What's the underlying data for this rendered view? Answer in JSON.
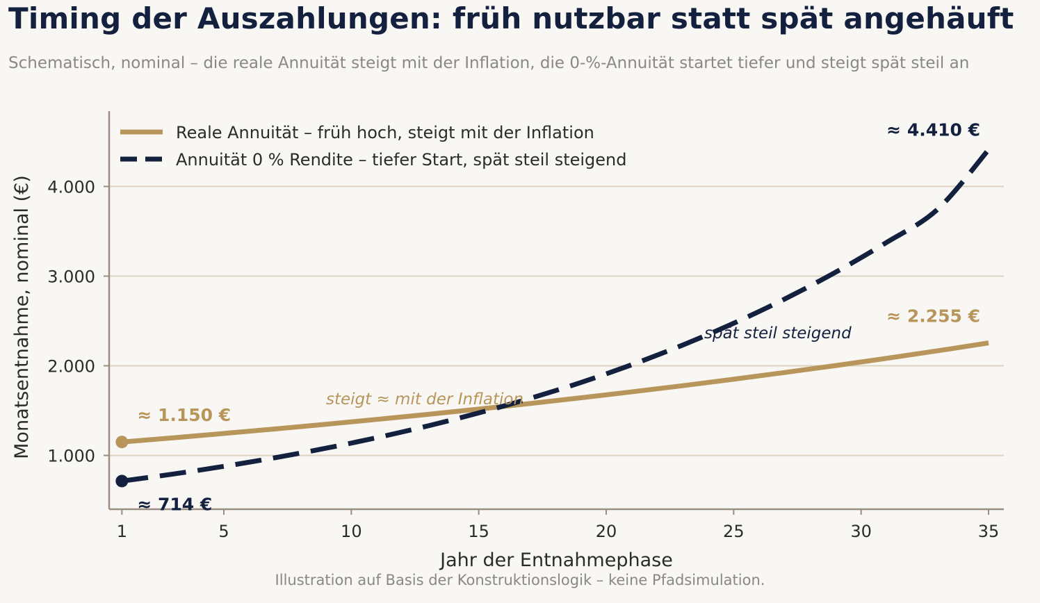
{
  "title": "Timing der Auszahlungen: früh nutzbar statt spät angehäuft",
  "subtitle": "Schematisch, nominal – die reale Annuität steigt mit der Inflation, die 0-%-Annuität startet tiefer und steigt spät steil an",
  "footnote": "Illustration auf Basis der Konstruktionslogik – keine Pfadsimulation.",
  "colors": {
    "real": "#b8955a",
    "zero": "#13213f",
    "grid": "#ddd3bf",
    "axis": "#9a8e80",
    "background": "#f8f7f4"
  },
  "chart_data": {
    "type": "line",
    "xlabel": "Jahr der Entnahmephase",
    "ylabel": "Monatsentnahme, nominal (€)",
    "xlim": [
      0.5,
      35.6
    ],
    "ylim": [
      400,
      4840
    ],
    "x_ticks": [
      1,
      5,
      10,
      15,
      20,
      25,
      30,
      35
    ],
    "x_tick_labels": [
      "1",
      "5",
      "10",
      "15",
      "20",
      "25",
      "30",
      "35"
    ],
    "y_ticks": [
      1000,
      2000,
      3000,
      4000
    ],
    "y_tick_labels": [
      "1.000",
      "2.000",
      "3.000",
      "4.000"
    ],
    "grid": "horizontal",
    "legend_position": "top-left",
    "series": [
      {
        "name": "Reale Annuität – früh hoch, steigt mit der Inflation",
        "style": "solid",
        "color": "#b8955a",
        "x": [
          1,
          3,
          5,
          7,
          9,
          11,
          13,
          15,
          17,
          19,
          21,
          23,
          25,
          27,
          29,
          31,
          33,
          35
        ],
        "y": [
          1150,
          1196,
          1245,
          1295,
          1347,
          1402,
          1458,
          1517,
          1579,
          1643,
          1709,
          1778,
          1850,
          1925,
          2002,
          2083,
          2167,
          2255
        ]
      },
      {
        "name": "Annuität 0 % Rendite – tiefer Start, spät steil steigend",
        "style": "dashed",
        "color": "#13213f",
        "x": [
          1,
          3,
          5,
          7,
          9,
          11,
          13,
          15,
          17,
          19,
          21,
          23,
          25,
          27,
          29,
          31,
          33,
          35
        ],
        "y": [
          714,
          792,
          878,
          974,
          1080,
          1198,
          1329,
          1474,
          1635,
          1813,
          2011,
          2231,
          2474,
          2744,
          3044,
          3376,
          3745,
          4410
        ]
      }
    ],
    "value_labels": [
      {
        "text": "≈ 1.150 €",
        "series": 0,
        "at": "start"
      },
      {
        "text": "≈ 2.255 €",
        "series": 0,
        "at": "end"
      },
      {
        "text": "≈ 714 €",
        "series": 1,
        "at": "start"
      },
      {
        "text": "≈ 4.410 €",
        "series": 1,
        "at": "end"
      }
    ],
    "annotations": [
      {
        "text": "steigt ≈ mit der Inflation",
        "series": 0
      },
      {
        "text": "spät steil steigend",
        "series": 1
      }
    ]
  }
}
